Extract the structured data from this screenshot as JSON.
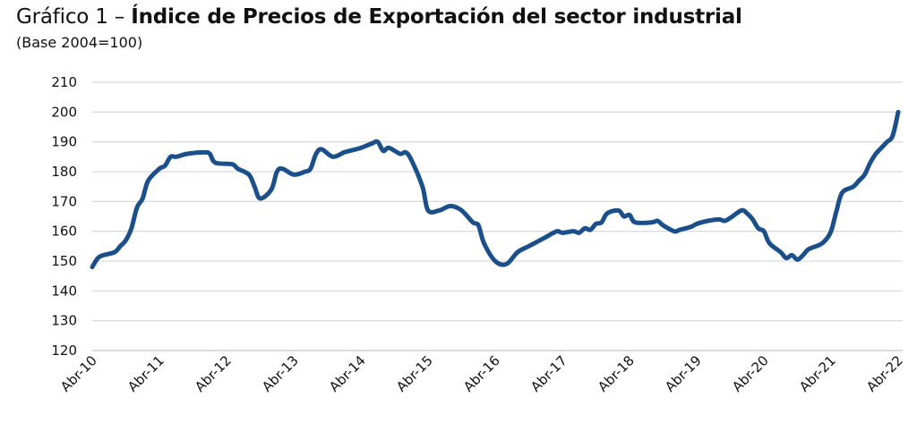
{
  "chart_data": {
    "type": "line",
    "title_prefix": "Gráfico 1 – ",
    "title_main": "Índice de Precios de Exportación del sector industrial",
    "subtitle": "(Base 2004=100)",
    "xlabel": "",
    "ylabel": "",
    "ylim": [
      120,
      210
    ],
    "yticks": [
      120,
      130,
      140,
      150,
      160,
      170,
      180,
      190,
      200,
      210
    ],
    "xticks": [
      {
        "date": "2010-04",
        "label": "Abr-10"
      },
      {
        "date": "2011-04",
        "label": "Abr-11"
      },
      {
        "date": "2012-04",
        "label": "Abr-12"
      },
      {
        "date": "2013-04",
        "label": "Abr-13"
      },
      {
        "date": "2014-04",
        "label": "Abr-14"
      },
      {
        "date": "2015-04",
        "label": "Abr-15"
      },
      {
        "date": "2016-04",
        "label": "Abr-16"
      },
      {
        "date": "2017-04",
        "label": "Abr-17"
      },
      {
        "date": "2018-04",
        "label": "Abr-18"
      },
      {
        "date": "2019-04",
        "label": "Abr-19"
      },
      {
        "date": "2020-04",
        "label": "Abr-20"
      },
      {
        "date": "2021-04",
        "label": "Abr-21"
      },
      {
        "date": "2022-04",
        "label": "Abr-22"
      }
    ],
    "grid": "horizontal",
    "legend": "none",
    "line_color": "#1b4f8a",
    "series": [
      {
        "points": [
          [
            "2010-04",
            148
          ],
          [
            "2010-05",
            151
          ],
          [
            "2010-06",
            152
          ],
          [
            "2010-08",
            153
          ],
          [
            "2010-09",
            155
          ],
          [
            "2010-10",
            157
          ],
          [
            "2010-11",
            161
          ],
          [
            "2010-12",
            168
          ],
          [
            "2011-01",
            171
          ],
          [
            "2011-02",
            177
          ],
          [
            "2011-04",
            181
          ],
          [
            "2011-05",
            182
          ],
          [
            "2011-06",
            185
          ],
          [
            "2011-07",
            185
          ],
          [
            "2011-09",
            186
          ],
          [
            "2011-12",
            186.5
          ],
          [
            "2012-01",
            186
          ],
          [
            "2012-02",
            183
          ],
          [
            "2012-05",
            182.5
          ],
          [
            "2012-06",
            181
          ],
          [
            "2012-08",
            179
          ],
          [
            "2012-09",
            175
          ],
          [
            "2012-10",
            171
          ],
          [
            "2012-12",
            174
          ],
          [
            "2013-01",
            180
          ],
          [
            "2013-02",
            181
          ],
          [
            "2013-04",
            179
          ],
          [
            "2013-06",
            180
          ],
          [
            "2013-07",
            181
          ],
          [
            "2013-08",
            186
          ],
          [
            "2013-09",
            187.5
          ],
          [
            "2013-11",
            185
          ],
          [
            "2014-01",
            186.5
          ],
          [
            "2014-02",
            187
          ],
          [
            "2014-04",
            188
          ],
          [
            "2014-06",
            189.5
          ],
          [
            "2014-07",
            190
          ],
          [
            "2014-08",
            187
          ],
          [
            "2014-09",
            188
          ],
          [
            "2014-11",
            186
          ],
          [
            "2014-12",
            186.5
          ],
          [
            "2015-01",
            184
          ],
          [
            "2015-03",
            175
          ],
          [
            "2015-04",
            167
          ],
          [
            "2015-06",
            167
          ],
          [
            "2015-08",
            168.5
          ],
          [
            "2015-10",
            167
          ],
          [
            "2015-12",
            163
          ],
          [
            "2016-01",
            162
          ],
          [
            "2016-02",
            156
          ],
          [
            "2016-04",
            150
          ],
          [
            "2016-06",
            149
          ],
          [
            "2016-08",
            153
          ],
          [
            "2016-10",
            155
          ],
          [
            "2016-12",
            157
          ],
          [
            "2017-01",
            158
          ],
          [
            "2017-03",
            160
          ],
          [
            "2017-04",
            159.5
          ],
          [
            "2017-06",
            160
          ],
          [
            "2017-07",
            159.5
          ],
          [
            "2017-08",
            161
          ],
          [
            "2017-09",
            160.5
          ],
          [
            "2017-10",
            162.5
          ],
          [
            "2017-11",
            163
          ],
          [
            "2017-12",
            166
          ],
          [
            "2018-02",
            167
          ],
          [
            "2018-03",
            165
          ],
          [
            "2018-04",
            165.5
          ],
          [
            "2018-05",
            163
          ],
          [
            "2018-08",
            163
          ],
          [
            "2018-09",
            163.5
          ],
          [
            "2018-10",
            162
          ],
          [
            "2018-12",
            160
          ],
          [
            "2019-01",
            160.5
          ],
          [
            "2019-03",
            161.5
          ],
          [
            "2019-04",
            162.5
          ],
          [
            "2019-06",
            163.5
          ],
          [
            "2019-08",
            164
          ],
          [
            "2019-09",
            163.5
          ],
          [
            "2019-10",
            164.5
          ],
          [
            "2019-12",
            167
          ],
          [
            "2020-01",
            166
          ],
          [
            "2020-02",
            164
          ],
          [
            "2020-03",
            161
          ],
          [
            "2020-04",
            160
          ],
          [
            "2020-05",
            156
          ],
          [
            "2020-07",
            153
          ],
          [
            "2020-08",
            151
          ],
          [
            "2020-09",
            152
          ],
          [
            "2020-10",
            150.5
          ],
          [
            "2020-11",
            152
          ],
          [
            "2020-12",
            154
          ],
          [
            "2021-02",
            155.5
          ],
          [
            "2021-03",
            157
          ],
          [
            "2021-04",
            160
          ],
          [
            "2021-05",
            167
          ],
          [
            "2021-06",
            173
          ],
          [
            "2021-08",
            175
          ],
          [
            "2021-09",
            177
          ],
          [
            "2021-10",
            179
          ],
          [
            "2021-11",
            183
          ],
          [
            "2021-12",
            186
          ],
          [
            "2022-01",
            188
          ],
          [
            "2022-02",
            190
          ],
          [
            "2022-03",
            192
          ],
          [
            "2022-04",
            200
          ]
        ]
      }
    ]
  }
}
